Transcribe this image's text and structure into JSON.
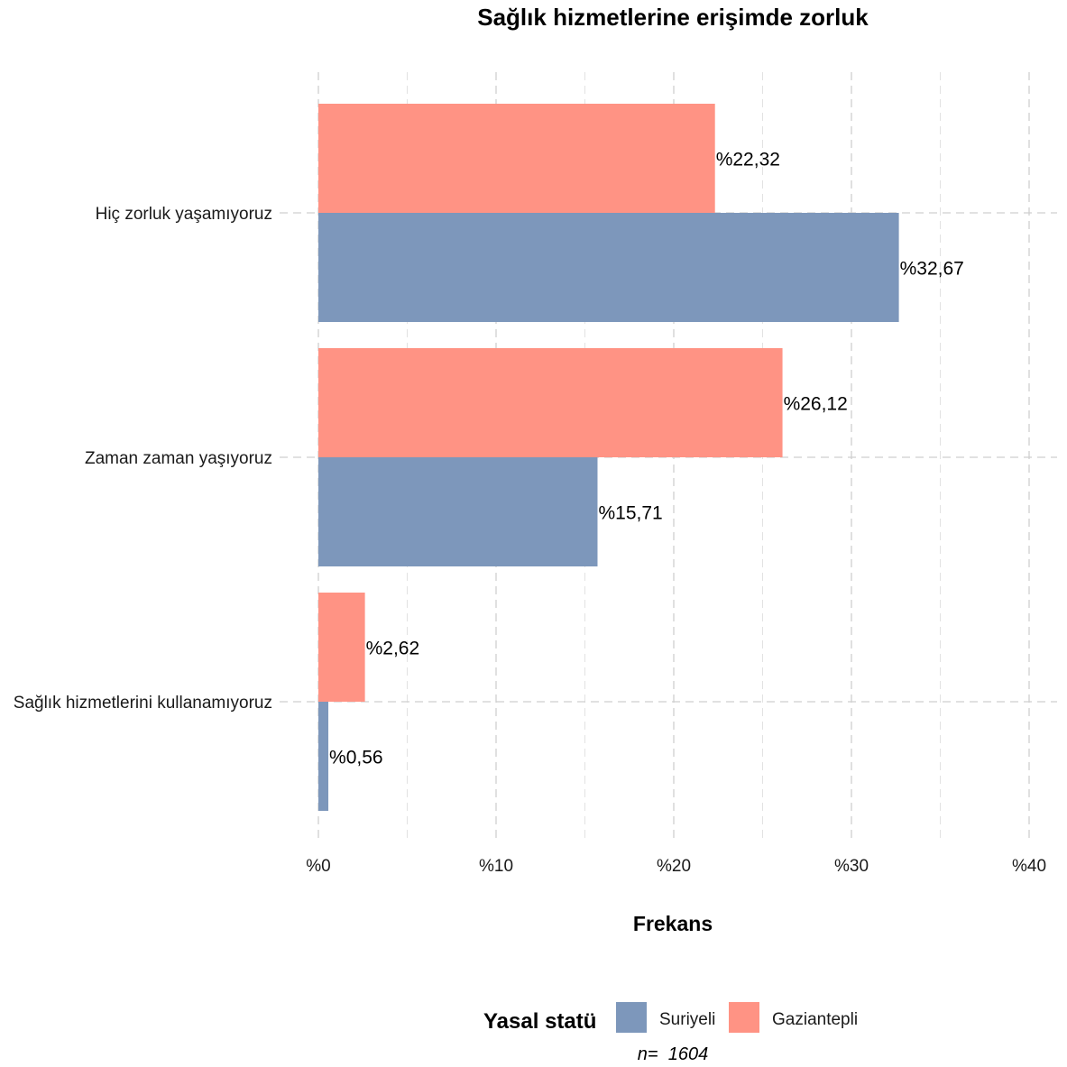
{
  "chart_data": {
    "type": "bar",
    "orientation": "horizontal",
    "title": "Sağlık hizmetlerine erişimde zorluk",
    "xlabel": "Frekans",
    "ylabel": "",
    "xlim": [
      0,
      40
    ],
    "x_ticks": [
      0,
      10,
      20,
      30,
      40
    ],
    "x_tick_labels": [
      "%0",
      "%10",
      "%20",
      "%30",
      "%40"
    ],
    "categories": [
      "Hiç zorluk yaşamıyoruz",
      "Zaman zaman yaşıyoruz",
      "Sağlık hizmetlerini kullanamıyoruz"
    ],
    "series": [
      {
        "name": "Suriyeli",
        "color": "#7D97BB",
        "values": [
          32.67,
          15.71,
          0.56
        ],
        "labels": [
          "%32,67",
          "%15,71",
          "%0,56"
        ]
      },
      {
        "name": "Gaziantepli",
        "color": "#FF9384",
        "values": [
          22.32,
          26.12,
          2.62
        ],
        "labels": [
          "%22,32",
          "%26,12",
          "%2,62"
        ]
      }
    ],
    "legend": {
      "title": "Yasal statü",
      "position": "bottom"
    },
    "caption": "n=  1604",
    "grid": true
  }
}
